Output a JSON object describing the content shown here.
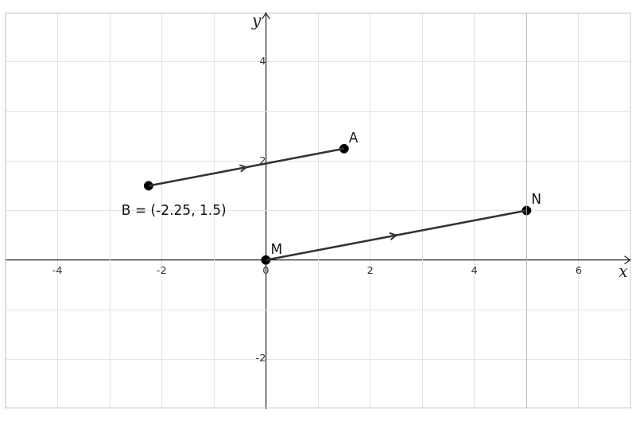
{
  "chart_data": {
    "type": "scatter",
    "x_label": "x",
    "y_label": "y",
    "points": [
      {
        "name": "A",
        "x": 1.5,
        "y": 2.25
      },
      {
        "name": "B",
        "x": -2.25,
        "y": 1.5,
        "label": "B = (-2.25, 1.5)"
      },
      {
        "name": "M",
        "x": 0,
        "y": 0
      },
      {
        "name": "N",
        "x": 5,
        "y": 1
      }
    ],
    "vectors": [
      {
        "from": "B",
        "to": "A"
      },
      {
        "from": "M",
        "to": "N"
      }
    ],
    "vertical_lines": [
      5
    ],
    "xlim": [
      -5,
      7
    ],
    "ylim": [
      -3,
      5
    ],
    "xticks": [
      -4,
      -2,
      0,
      2,
      4,
      6
    ],
    "yticks": [
      -2,
      2,
      4
    ],
    "grid": true,
    "color": "#333333"
  }
}
